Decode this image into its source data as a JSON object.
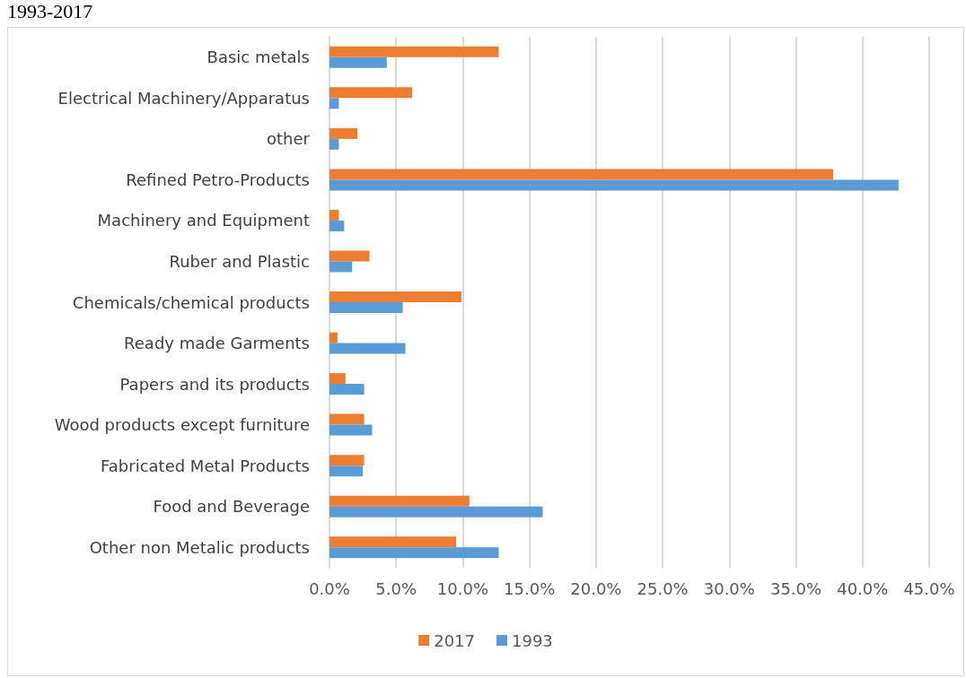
{
  "chart_data": {
    "type": "bar",
    "orientation": "horizontal",
    "title": "1993-2017",
    "categories": [
      "Basic metals",
      "Electrical Machinery/Apparatus",
      "other",
      "Refined Petro-Products",
      "Machinery and Equipment",
      "Ruber and Plastic",
      "Chemicals/chemical products",
      "Ready made Garments",
      "Papers and its products",
      "Wood products except furniture",
      "Fabricated Metal Products",
      "Food and Beverage",
      "Other non Metalic products"
    ],
    "series": [
      {
        "name": "2017",
        "color": "#ed7d31",
        "values": [
          12.7,
          6.2,
          2.1,
          37.8,
          0.7,
          3.0,
          9.9,
          0.6,
          1.2,
          2.6,
          2.6,
          10.5,
          9.5
        ]
      },
      {
        "name": "1993",
        "color": "#5b9bd5",
        "values": [
          4.3,
          0.7,
          0.7,
          42.7,
          1.1,
          1.7,
          5.5,
          5.7,
          2.6,
          3.2,
          2.5,
          16.0,
          12.7
        ]
      }
    ],
    "xlim": [
      0,
      45
    ],
    "xticks": [
      {
        "value": 0,
        "label": "0.0%"
      },
      {
        "value": 5,
        "label": "5.0%"
      },
      {
        "value": 10,
        "label": "10.0%"
      },
      {
        "value": 15,
        "label": "15.0%"
      },
      {
        "value": 20,
        "label": "20.0%"
      },
      {
        "value": 25,
        "label": "25.0%"
      },
      {
        "value": 30,
        "label": "30.0%"
      },
      {
        "value": 35,
        "label": "35.0%"
      },
      {
        "value": 40,
        "label": "40.0%"
      },
      {
        "value": 45,
        "label": "45.0%"
      }
    ],
    "grid": "x",
    "legend": "bottom"
  }
}
